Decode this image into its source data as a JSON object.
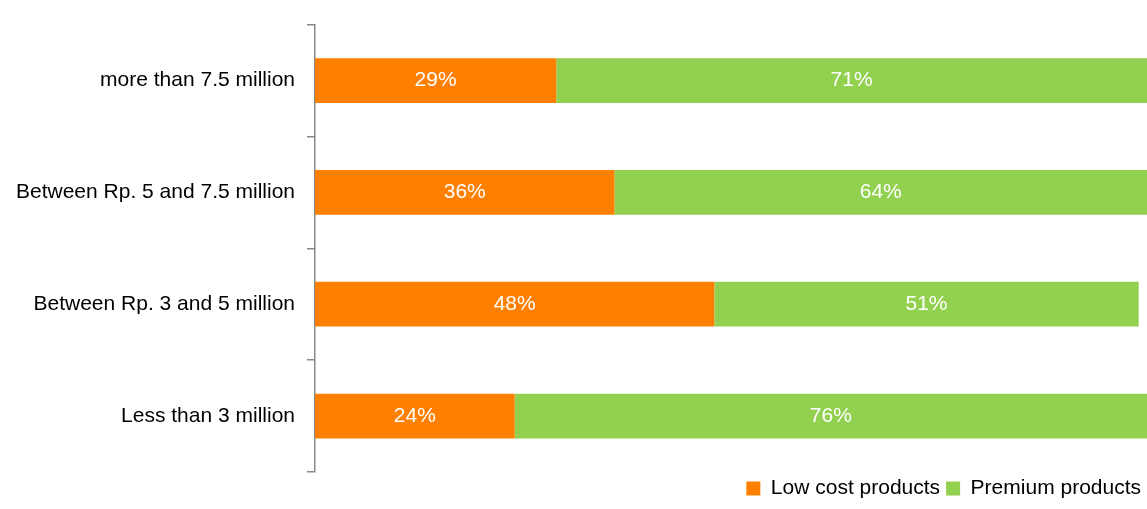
{
  "chart_data": {
    "type": "bar",
    "orientation": "horizontal",
    "stacked": true,
    "categories": [
      "more than 7.5 million",
      "Between Rp. 5 and 7.5 million",
      "Between Rp. 3 and 5 million",
      "Less than 3 million"
    ],
    "series": [
      {
        "name": "Low cost products",
        "color": "#ff7f00",
        "values": [
          29,
          36,
          48,
          24
        ],
        "value_labels": [
          "29%",
          "36%",
          "48%",
          "24%"
        ]
      },
      {
        "name": "Premium products",
        "color": "#92d050",
        "values": [
          71,
          64,
          51,
          76
        ],
        "value_labels": [
          "71%",
          "64%",
          "51%",
          "76%"
        ]
      }
    ],
    "tick_labels": "y",
    "legend": "bottom right"
  }
}
